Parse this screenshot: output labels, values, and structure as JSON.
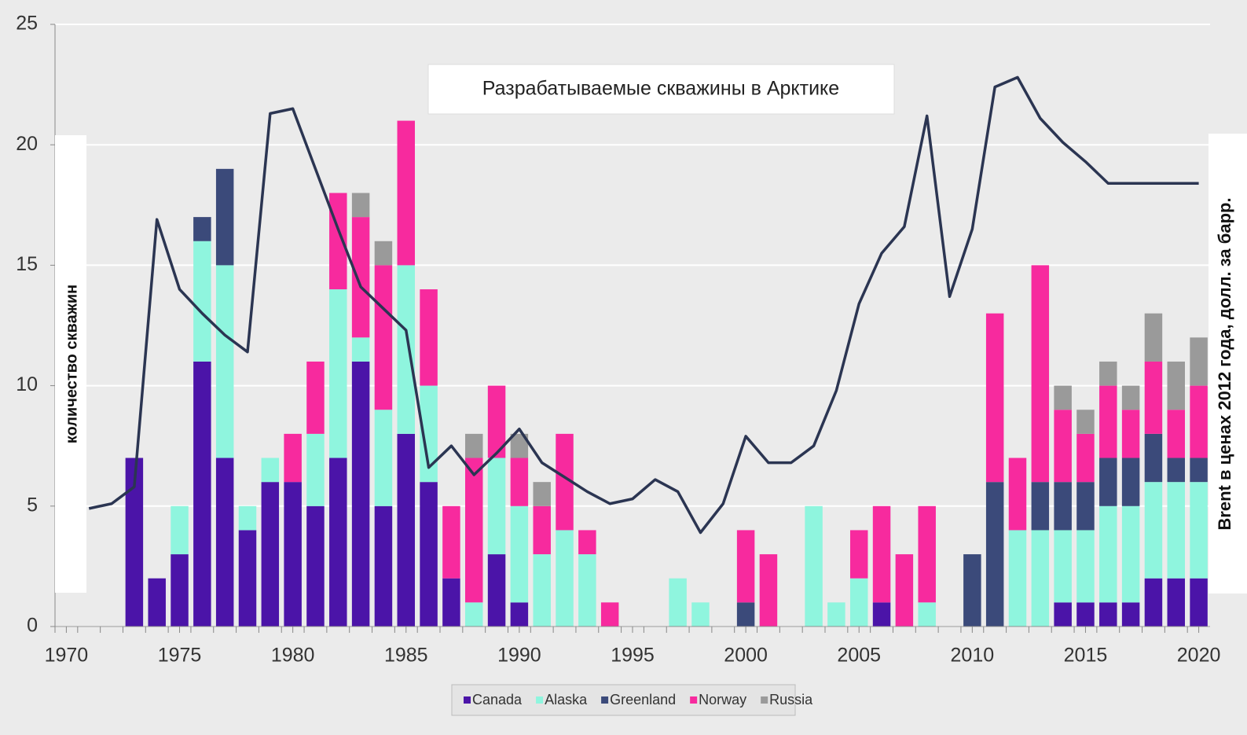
{
  "chart_data": {
    "type": "bar",
    "title": "Разрабатываемые скважины в Арктике",
    "y_label": "количество скважин",
    "y2_label": "Brent в ценах 2012 года, долл. за барр.",
    "x": [
      1970,
      1971,
      1972,
      1973,
      1974,
      1975,
      1976,
      1977,
      1978,
      1979,
      1980,
      1981,
      1982,
      1983,
      1984,
      1985,
      1986,
      1987,
      1988,
      1989,
      1990,
      1991,
      1992,
      1993,
      1994,
      1995,
      1996,
      1997,
      1998,
      1999,
      2000,
      2001,
      2002,
      2003,
      2004,
      2005,
      2006,
      2007,
      2008,
      2009,
      2010,
      2011,
      2012,
      2013,
      2014,
      2015,
      2016,
      2017,
      2018,
      2019,
      2020
    ],
    "xlim": [
      1969.5,
      2020.5
    ],
    "xticks": [
      1970,
      1975,
      1980,
      1985,
      1990,
      1995,
      2000,
      2005,
      2010,
      2015,
      2020
    ],
    "ylim": [
      0,
      25
    ],
    "yticks": [
      0,
      5,
      10,
      15,
      20,
      25
    ],
    "grid": true,
    "stacked": true,
    "series": [
      {
        "name": "Canada",
        "color": "#4b14a8",
        "values": [
          0,
          0,
          0,
          7,
          2,
          3,
          11,
          7,
          4,
          6,
          6,
          5,
          7,
          11,
          5,
          8,
          6,
          2,
          0,
          3,
          1,
          0,
          0,
          0,
          0,
          0,
          0,
          0,
          0,
          0,
          0,
          0,
          0,
          0,
          0,
          0,
          1,
          0,
          0,
          0,
          0,
          0,
          0,
          0,
          1,
          1,
          1,
          1,
          2,
          2,
          2
        ]
      },
      {
        "name": "Alaska",
        "color": "#8ff5de",
        "values": [
          0,
          0,
          0,
          0,
          0,
          2,
          5,
          8,
          1,
          1,
          0,
          3,
          7,
          1,
          4,
          7,
          4,
          0,
          1,
          4,
          4,
          3,
          4,
          3,
          0,
          0,
          0,
          2,
          1,
          0,
          0,
          0,
          0,
          5,
          1,
          2,
          0,
          0,
          1,
          0,
          0,
          0,
          4,
          4,
          3,
          3,
          4,
          4,
          4,
          4,
          4
        ]
      },
      {
        "name": "Greenland",
        "color": "#3b4a7a",
        "values": [
          0,
          0,
          0,
          0,
          0,
          0,
          1,
          4,
          0,
          0,
          0,
          0,
          0,
          0,
          0,
          0,
          0,
          0,
          0,
          0,
          0,
          0,
          0,
          0,
          0,
          0,
          0,
          0,
          0,
          0,
          1,
          0,
          0,
          0,
          0,
          0,
          0,
          0,
          0,
          0,
          3,
          6,
          0,
          2,
          2,
          2,
          2,
          2,
          2,
          1,
          1
        ]
      },
      {
        "name": "Norway",
        "color": "#f72a9e",
        "values": [
          0,
          0,
          0,
          0,
          0,
          0,
          0,
          0,
          0,
          0,
          2,
          3,
          4,
          5,
          6,
          6,
          4,
          3,
          6,
          3,
          2,
          2,
          4,
          1,
          1,
          0,
          0,
          0,
          0,
          0,
          3,
          3,
          0,
          0,
          0,
          2,
          4,
          3,
          4,
          0,
          0,
          7,
          3,
          9,
          3,
          2,
          3,
          2,
          3,
          2,
          3
        ]
      },
      {
        "name": "Russia",
        "color": "#9a9a9a",
        "values": [
          0,
          0,
          0,
          0,
          0,
          0,
          0,
          0,
          0,
          0,
          0,
          0,
          0,
          1,
          1,
          0,
          0,
          0,
          1,
          0,
          1,
          1,
          0,
          0,
          0,
          0,
          0,
          0,
          0,
          0,
          0,
          0,
          0,
          0,
          0,
          0,
          0,
          0,
          0,
          0,
          0,
          0,
          0,
          0,
          1,
          1,
          1,
          1,
          2,
          2,
          2
        ]
      }
    ],
    "line": {
      "type": "line",
      "color": "#2b3552",
      "values": [
        null,
        4.9,
        5.1,
        5.8,
        16.9,
        14.0,
        13.0,
        12.1,
        11.4,
        21.3,
        21.5,
        19.0,
        16.5,
        14.1,
        13.2,
        12.3,
        6.6,
        7.5,
        6.3,
        7.2,
        8.2,
        6.8,
        6.2,
        5.6,
        5.1,
        5.3,
        6.1,
        5.6,
        3.9,
        5.1,
        7.9,
        6.8,
        6.8,
        7.5,
        9.8,
        13.4,
        15.5,
        16.6,
        21.2,
        13.7,
        16.5,
        22.4,
        22.8,
        21.1,
        20.1,
        19.3,
        18.4,
        18.4,
        18.4,
        18.4,
        18.4
      ]
    }
  }
}
